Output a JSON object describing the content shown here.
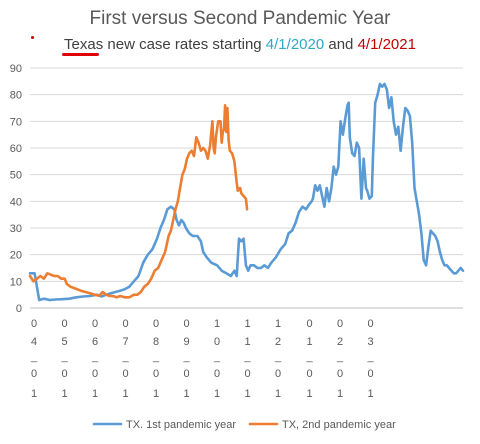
{
  "chart_data": {
    "type": "line",
    "title": "First versus Second Pandemic Year",
    "subtitle": {
      "part1": "Texas new case rates starting ",
      "date1": "4/1/2020",
      "part2": " and ",
      "date2": "4/1/2021"
    },
    "ylim": [
      0,
      90
    ],
    "yticks": [
      "0",
      "10",
      "20",
      "30",
      "40",
      "50",
      "60",
      "70",
      "80",
      "90"
    ],
    "grid": true,
    "legend_position": "bottom",
    "xticks": [
      {
        "line1": "0",
        "line2": "4",
        "line3": "_",
        "line4": "0",
        "line5": "1"
      },
      {
        "line1": "0",
        "line2": "5",
        "line3": "_",
        "line4": "0",
        "line5": "1"
      },
      {
        "line1": "0",
        "line2": "6",
        "line3": "_",
        "line4": "0",
        "line5": "1"
      },
      {
        "line1": "0",
        "line2": "7",
        "line3": "_",
        "line4": "0",
        "line5": "1"
      },
      {
        "line1": "0",
        "line2": "8",
        "line3": "_",
        "line4": "0",
        "line5": "1"
      },
      {
        "line1": "0",
        "line2": "9",
        "line3": "_",
        "line4": "0",
        "line5": "1"
      },
      {
        "line1": "1",
        "line2": "0",
        "line3": "_",
        "line4": "0",
        "line5": "1"
      },
      {
        "line1": "1",
        "line2": "1",
        "line3": "_",
        "line4": "0",
        "line5": "1"
      },
      {
        "line1": "1",
        "line2": "2",
        "line3": "_",
        "line4": "0",
        "line5": "1"
      },
      {
        "line1": "0",
        "line2": "1",
        "line3": "_",
        "line4": "0",
        "line5": "1"
      },
      {
        "line1": "0",
        "line2": "2",
        "line3": "_",
        "line4": "0",
        "line5": "1"
      },
      {
        "line1": "0",
        "line2": "3",
        "line3": "_",
        "line4": "0",
        "line5": "1"
      }
    ],
    "series": [
      {
        "name": "TX. 1st pandemic year",
        "color": "#5b9bd5",
        "points": [
          [
            0,
            13
          ],
          [
            4,
            13
          ],
          [
            8,
            3
          ],
          [
            12,
            3.5
          ],
          [
            17,
            3
          ],
          [
            22,
            3.2
          ],
          [
            28,
            3.3
          ],
          [
            34,
            3.5
          ],
          [
            40,
            4
          ],
          [
            46,
            4.3
          ],
          [
            52,
            4.5
          ],
          [
            58,
            5
          ],
          [
            62,
            4.3
          ],
          [
            66,
            5
          ],
          [
            70,
            5.5
          ],
          [
            74,
            6
          ],
          [
            78,
            6.5
          ],
          [
            82,
            7
          ],
          [
            86,
            8
          ],
          [
            90,
            10
          ],
          [
            94,
            12
          ],
          [
            98,
            17
          ],
          [
            102,
            20
          ],
          [
            106,
            22
          ],
          [
            110,
            26
          ],
          [
            113,
            30
          ],
          [
            116,
            33
          ],
          [
            119,
            37
          ],
          [
            122,
            38
          ],
          [
            125,
            37
          ],
          [
            127,
            33
          ],
          [
            129,
            31
          ],
          [
            131,
            33
          ],
          [
            133,
            32
          ],
          [
            135,
            30
          ],
          [
            138,
            28
          ],
          [
            141,
            27
          ],
          [
            145,
            27
          ],
          [
            148,
            25
          ],
          [
            150,
            21
          ],
          [
            153,
            19
          ],
          [
            157,
            17
          ],
          [
            162,
            16
          ],
          [
            166,
            14
          ],
          [
            170,
            13
          ],
          [
            174,
            12
          ],
          [
            177,
            14
          ],
          [
            179,
            12
          ],
          [
            181,
            26
          ],
          [
            183,
            25
          ],
          [
            185,
            26
          ],
          [
            187,
            16
          ],
          [
            189,
            14
          ],
          [
            191,
            16
          ],
          [
            194,
            16
          ],
          [
            197,
            15
          ],
          [
            200,
            15
          ],
          [
            203,
            16
          ],
          [
            206,
            15
          ],
          [
            209,
            17
          ],
          [
            213,
            19
          ],
          [
            217,
            22
          ],
          [
            221,
            24
          ],
          [
            224,
            28
          ],
          [
            227,
            29
          ],
          [
            230,
            32
          ],
          [
            233,
            36
          ],
          [
            236,
            38
          ],
          [
            239,
            37
          ],
          [
            242,
            39
          ],
          [
            244,
            40
          ],
          [
            245,
            41
          ],
          [
            247,
            46
          ],
          [
            249,
            44
          ],
          [
            251,
            46
          ],
          [
            253,
            42
          ],
          [
            255,
            38
          ],
          [
            257,
            45
          ],
          [
            259,
            40
          ],
          [
            261,
            45
          ],
          [
            263,
            53
          ],
          [
            265,
            50
          ],
          [
            267,
            53
          ],
          [
            269,
            70
          ],
          [
            271,
            65
          ],
          [
            273,
            71
          ],
          [
            275,
            76
          ],
          [
            276,
            77
          ],
          [
            277,
            64
          ],
          [
            279,
            58
          ],
          [
            281,
            57
          ],
          [
            283,
            62
          ],
          [
            285,
            60
          ],
          [
            287,
            41
          ],
          [
            288,
            48
          ],
          [
            289,
            56
          ],
          [
            291,
            45
          ],
          [
            292,
            44
          ],
          [
            294,
            41
          ],
          [
            296,
            42
          ],
          [
            297,
            56
          ],
          [
            299,
            77
          ],
          [
            301,
            80
          ],
          [
            303,
            84
          ],
          [
            305,
            83
          ],
          [
            307,
            84
          ],
          [
            309,
            82
          ],
          [
            311,
            75
          ],
          [
            313,
            79
          ],
          [
            315,
            70
          ],
          [
            317,
            65
          ],
          [
            319,
            68
          ],
          [
            321,
            59
          ],
          [
            323,
            68
          ],
          [
            325,
            75
          ],
          [
            327,
            74
          ],
          [
            329,
            72
          ],
          [
            331,
            62
          ],
          [
            333,
            45
          ],
          [
            335,
            40
          ],
          [
            337,
            35
          ],
          [
            339,
            28
          ],
          [
            341,
            18
          ],
          [
            343,
            16
          ],
          [
            345,
            23
          ],
          [
            347,
            29
          ],
          [
            349,
            28
          ],
          [
            351,
            27
          ],
          [
            353,
            25
          ],
          [
            355,
            21
          ],
          [
            357,
            18
          ],
          [
            359,
            16
          ],
          [
            361,
            16
          ],
          [
            363,
            15
          ],
          [
            365,
            14
          ],
          [
            367,
            13
          ],
          [
            369,
            13
          ],
          [
            371,
            14
          ],
          [
            373,
            15
          ],
          [
            375,
            14
          ]
        ]
      },
      {
        "name": "TX, 2nd pandemic year",
        "color": "#ed7d31",
        "points": [
          [
            0,
            12
          ],
          [
            3,
            10
          ],
          [
            6,
            11
          ],
          [
            9,
            12
          ],
          [
            12,
            11
          ],
          [
            15,
            13
          ],
          [
            18,
            12.5
          ],
          [
            21,
            12
          ],
          [
            24,
            12
          ],
          [
            27,
            11
          ],
          [
            30,
            11
          ],
          [
            32,
            9
          ],
          [
            35,
            8
          ],
          [
            38,
            7.5
          ],
          [
            41,
            7
          ],
          [
            44,
            6.5
          ],
          [
            48,
            6
          ],
          [
            52,
            5.5
          ],
          [
            56,
            5
          ],
          [
            60,
            4.6
          ],
          [
            63,
            6
          ],
          [
            66,
            5
          ],
          [
            69,
            4.5
          ],
          [
            72,
            4.5
          ],
          [
            75,
            4
          ],
          [
            78,
            4.5
          ],
          [
            82,
            4
          ],
          [
            86,
            4
          ],
          [
            90,
            5
          ],
          [
            93,
            5
          ],
          [
            96,
            6
          ],
          [
            99,
            8
          ],
          [
            102,
            9
          ],
          [
            105,
            11
          ],
          [
            108,
            14
          ],
          [
            111,
            15
          ],
          [
            114,
            18
          ],
          [
            117,
            21
          ],
          [
            120,
            27
          ],
          [
            122,
            29
          ],
          [
            124,
            33
          ],
          [
            126,
            37
          ],
          [
            128,
            40
          ],
          [
            130,
            45
          ],
          [
            132,
            50
          ],
          [
            134,
            52
          ],
          [
            136,
            56
          ],
          [
            138,
            58
          ],
          [
            140,
            59
          ],
          [
            142,
            57
          ],
          [
            144,
            64
          ],
          [
            146,
            62
          ],
          [
            148,
            59
          ],
          [
            150,
            60
          ],
          [
            152,
            59
          ],
          [
            154,
            56
          ],
          [
            156,
            61
          ],
          [
            158,
            70
          ],
          [
            159,
            60
          ],
          [
            160,
            58
          ],
          [
            161,
            64
          ],
          [
            163,
            70
          ],
          [
            165,
            70
          ],
          [
            166,
            62
          ],
          [
            167,
            66
          ],
          [
            168,
            67
          ],
          [
            169,
            76
          ],
          [
            170,
            66
          ],
          [
            171,
            75
          ],
          [
            172,
            63
          ],
          [
            173,
            59
          ],
          [
            175,
            58
          ],
          [
            177,
            55
          ],
          [
            179,
            47
          ],
          [
            180,
            44
          ],
          [
            182,
            45
          ],
          [
            183,
            43
          ],
          [
            185,
            42
          ],
          [
            187,
            41
          ],
          [
            188,
            37
          ]
        ]
      }
    ]
  }
}
